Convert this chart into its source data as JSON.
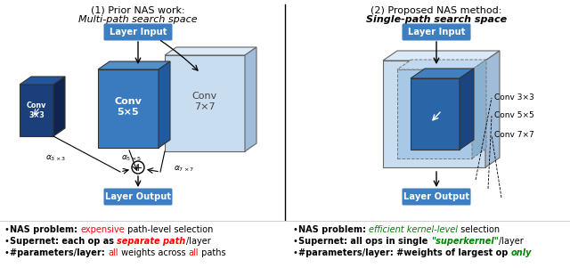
{
  "title_left": "(1) Prior NAS work:",
  "subtitle_left": "Multi-path search space",
  "title_right": "(2) Proposed NAS method:",
  "subtitle_right": "Single-path search space",
  "bg_color": "white",
  "label_input": "Layer Input",
  "label_output": "Layer Output",
  "box_header_bg": "#3d7fc1",
  "box_header_text": "white",
  "conv3_face": "#1a3f7a",
  "conv3_side": "#0f2550",
  "conv3_top": "#2255a0",
  "conv5_face": "#3a7bbf",
  "conv5_side": "#1f5b9e",
  "conv5_top": "#5090cc",
  "conv7_face": "#c8ddf0",
  "conv7_side": "#a0bcd8",
  "conv7_top": "#daeaf8",
  "right_outer_face": "#c8ddf0",
  "right_outer_side": "#a0bcd8",
  "right_outer_top": "#daeaf8",
  "right_mid_face": "#a8c8e8",
  "right_mid_top": "#c0d8f0",
  "right_mid_side": "#8ab0d0",
  "right_inner_face": "#2a65a8",
  "right_inner_side": "#1a4580",
  "right_inner_top": "#4080c0",
  "conv_labels_right": [
    "Conv 3×3",
    "Conv 5×5",
    "Conv 7×7"
  ],
  "bullet_left": [
    [
      "NAS problem: ",
      "expensive",
      " path-level selection"
    ],
    [
      "Supernet: each op as ",
      "separate path",
      "/layer"
    ],
    [
      "#parameters/layer: ",
      "all",
      " weights across ",
      "all",
      " paths"
    ]
  ],
  "bullet_right": [
    [
      "NAS problem: ",
      "efficient kernel-level",
      " selection"
    ],
    [
      "Supernet: all ops in single ",
      "\"superkernel\"",
      "/layer"
    ],
    [
      "#parameters/layer: #weights of largest op ",
      "only"
    ]
  ],
  "bullet_colors_left": [
    [
      "black",
      "red",
      "black"
    ],
    [
      "black",
      "red",
      "black"
    ],
    [
      "black",
      "red",
      "black",
      "red",
      "black"
    ]
  ],
  "bullet_colors_right": [
    [
      "black",
      "green",
      "black"
    ],
    [
      "black",
      "green",
      "black"
    ],
    [
      "black",
      "green"
    ]
  ],
  "bullet_bold_left": [
    [
      true,
      false,
      false
    ],
    [
      true,
      true,
      false
    ],
    [
      true,
      false,
      false,
      false,
      false
    ]
  ],
  "bullet_bold_right": [
    [
      true,
      false,
      false
    ],
    [
      true,
      true,
      false
    ],
    [
      true,
      true
    ]
  ],
  "bullet_italic_left": [
    [
      false,
      false,
      false
    ],
    [
      false,
      true,
      false
    ],
    [
      false,
      false,
      false,
      false,
      false
    ]
  ],
  "bullet_italic_right": [
    [
      false,
      true,
      false
    ],
    [
      false,
      true,
      false
    ],
    [
      false,
      true
    ]
  ]
}
